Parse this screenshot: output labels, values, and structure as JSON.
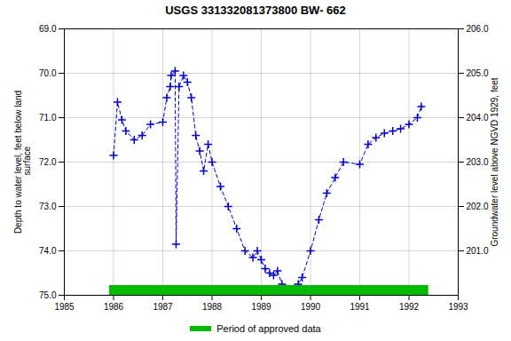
{
  "chart_data": {
    "type": "line",
    "title": "USGS 331332081373800 BW- 662",
    "y_label": "Depth to water level, feet below land\n surface",
    "y2_label": "Groundwater level above NGVD 1929, feet",
    "x": [
      1986.0,
      1986.08,
      1986.17,
      1986.25,
      1986.42,
      1986.58,
      1986.75,
      1987.0,
      1987.08,
      1987.15,
      1987.17,
      1987.25,
      1987.27,
      1987.33,
      1987.42,
      1987.5,
      1987.58,
      1987.67,
      1987.75,
      1987.83,
      1987.92,
      1988.0,
      1988.17,
      1988.33,
      1988.5,
      1988.67,
      1988.83,
      1988.92,
      1989.0,
      1989.08,
      1989.17,
      1989.25,
      1989.33,
      1989.42,
      1989.5,
      1989.58,
      1989.67,
      1989.75,
      1989.83,
      1990.0,
      1990.17,
      1990.33,
      1990.5,
      1990.67,
      1991.0,
      1991.17,
      1991.33,
      1991.5,
      1991.67,
      1991.83,
      1992.0,
      1992.17,
      1992.25
    ],
    "series": [
      {
        "color": "#0000cc",
        "line_style": "dashed",
        "marker": "plus",
        "values": [
          71.85,
          70.65,
          71.05,
          71.3,
          71.5,
          71.4,
          71.15,
          71.1,
          70.55,
          70.3,
          70.05,
          69.95,
          73.85,
          70.3,
          70.05,
          70.2,
          70.55,
          71.4,
          71.75,
          72.2,
          71.6,
          72.0,
          72.55,
          73.0,
          73.5,
          74.0,
          74.15,
          74.0,
          74.2,
          74.4,
          74.5,
          74.55,
          74.45,
          74.75,
          74.85,
          74.9,
          74.85,
          74.75,
          74.6,
          74.0,
          73.3,
          72.7,
          72.35,
          72.0,
          72.05,
          71.6,
          71.45,
          71.35,
          71.3,
          71.25,
          71.15,
          71.0,
          70.75
        ]
      }
    ],
    "approved_period": {
      "name": "Period of approved data",
      "color": "#00bb00",
      "x": [
        1985.92,
        1992.4
      ],
      "y": [
        74.78,
        75.0
      ]
    },
    "xlim": [
      1985,
      1993
    ],
    "xticks": [
      1985,
      1986,
      1987,
      1988,
      1989,
      1990,
      1991,
      1992,
      1993
    ],
    "ylim": [
      75.0,
      69.0
    ],
    "yticks": [
      {
        "value": 69.0,
        "label": "69.0"
      },
      {
        "value": 70.0,
        "label": "70.0"
      },
      {
        "value": 71.0,
        "label": "71.0"
      },
      {
        "value": 72.0,
        "label": "72.0"
      },
      {
        "value": 73.0,
        "label": "73.0"
      },
      {
        "value": 74.0,
        "label": "74.0"
      },
      {
        "value": 75.0,
        "label": "75.0"
      }
    ],
    "y2lim": [
      200.0,
      206.0
    ],
    "y2ticks": [
      {
        "value": 206.0,
        "label": "206.0"
      },
      {
        "value": 205.0,
        "label": "205.0"
      },
      {
        "value": 204.0,
        "label": "204.0"
      },
      {
        "value": 203.0,
        "label": "203.0"
      },
      {
        "value": 202.0,
        "label": "202.0"
      },
      {
        "value": 201.0,
        "label": "201.0"
      }
    ],
    "grid": true,
    "legend": "bottom"
  }
}
